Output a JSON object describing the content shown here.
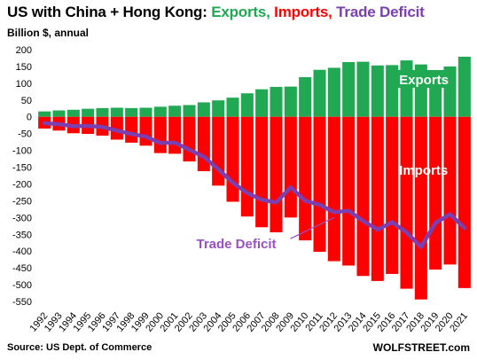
{
  "header": {
    "title_prefix": "US with China + Hong Kong: ",
    "title_exports": "Exports,",
    "title_imports": "Imports,",
    "title_deficit": "Trade Deficit",
    "subtitle": "Billion $, annual"
  },
  "footer": {
    "source": "Source: US Dept. of Commerce",
    "brand": "WOLFSTREET.com"
  },
  "colors": {
    "exports": "#21a852",
    "imports": "#ff0000",
    "deficit": "#7b3fb0",
    "deficit_label": "#9a4fc4",
    "exports_label_bg": "#21a852",
    "imports_label_bg": "#ff0000"
  },
  "chart_data": {
    "type": "bar",
    "title": "US with China + Hong Kong: Exports, Imports, Trade Deficit",
    "ylabel": "Billion $, annual",
    "xlabel": "",
    "ylim": [
      -550,
      200
    ],
    "yticks": [
      200,
      150,
      100,
      50,
      0,
      -50,
      -100,
      -150,
      -200,
      -250,
      -300,
      -350,
      -400,
      -450,
      -500,
      -550
    ],
    "grid": false,
    "categories": [
      "1992",
      "1993",
      "1994",
      "1995",
      "1996",
      "1997",
      "1998",
      "1999",
      "2000",
      "2001",
      "2002",
      "2003",
      "2004",
      "2005",
      "2006",
      "2007",
      "2008",
      "2009",
      "2010",
      "2011",
      "2012",
      "2013",
      "2014",
      "2015",
      "2016",
      "2017",
      "2018",
      "2019",
      "2020",
      "2021"
    ],
    "series": [
      {
        "name": "Exports",
        "type": "bar",
        "values": [
          16,
          19,
          21,
          24,
          26,
          27,
          26,
          27,
          30,
          33,
          35,
          43,
          49,
          57,
          70,
          82,
          89,
          90,
          118,
          140,
          146,
          163,
          164,
          153,
          154,
          168,
          156,
          139,
          150,
          179
        ]
      },
      {
        "name": "Imports",
        "type": "bar",
        "values": [
          -35,
          -41,
          -49,
          -51,
          -56,
          -68,
          -77,
          -86,
          -108,
          -110,
          -133,
          -162,
          -205,
          -253,
          -297,
          -329,
          -344,
          -300,
          -368,
          -402,
          -430,
          -443,
          -474,
          -489,
          -468,
          -512,
          -544,
          -455,
          -440,
          -510
        ]
      },
      {
        "name": "Trade Deficit",
        "type": "line",
        "values": [
          -19,
          -22,
          -28,
          -27,
          -30,
          -41,
          -51,
          -59,
          -78,
          -77,
          -98,
          -119,
          -156,
          -196,
          -227,
          -247,
          -255,
          -210,
          -250,
          -262,
          -284,
          -280,
          -310,
          -336,
          -314,
          -344,
          -388,
          -316,
          -290,
          -331
        ]
      }
    ],
    "annotations": [
      {
        "text": "Exports",
        "x": "2016",
        "y": 105
      },
      {
        "text": "Imports",
        "x": "2016",
        "y": -165
      },
      {
        "text": "Trade Deficit",
        "x": "2008",
        "y": -400
      }
    ]
  }
}
